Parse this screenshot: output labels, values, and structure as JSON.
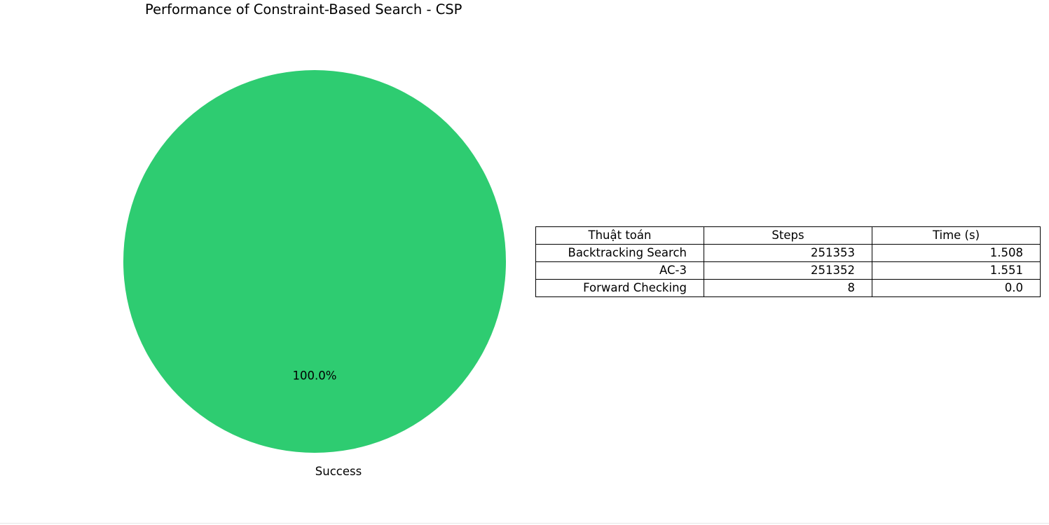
{
  "chart_data": {
    "type": "pie",
    "title": "Performance of Constraint-Based Search - CSP",
    "slices": [
      {
        "label": "Success",
        "value": 100,
        "percent_label": "100.0%",
        "color": "#2ecc71"
      }
    ],
    "table": {
      "columns": [
        "Thuật toán",
        "Steps",
        "Time (s)"
      ],
      "rows": [
        [
          "Backtracking Search",
          "251353",
          "1.508"
        ],
        [
          "AC-3",
          "251352",
          "1.551"
        ],
        [
          "Forward Checking",
          "8",
          "0.0"
        ]
      ]
    }
  }
}
